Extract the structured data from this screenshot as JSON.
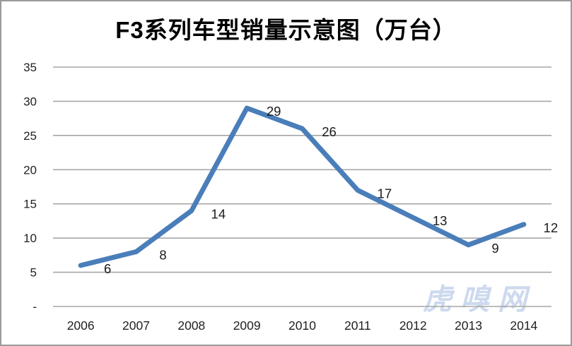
{
  "title": "F3系列车型销量示意图（万台）",
  "watermark": "虎嗅网",
  "colors": {
    "line": "#4a7eba",
    "grid": "#a6a6a6",
    "frame_border": "#9a9a9a",
    "text": "#212121",
    "watermark": "#cdd9ee",
    "background": "#ffffff"
  },
  "chart_data": {
    "type": "line",
    "title": "F3系列车型销量示意图（万台）",
    "categories": [
      "2006",
      "2007",
      "2008",
      "2009",
      "2010",
      "2011",
      "2012",
      "2013",
      "2014"
    ],
    "values": [
      6,
      8,
      14,
      29,
      26,
      17,
      13,
      9,
      12
    ],
    "series": [
      {
        "name": "F3系列车型销量",
        "values": [
          6,
          8,
          14,
          29,
          26,
          17,
          13,
          9,
          12
        ]
      }
    ],
    "xlabel": "",
    "ylabel": "",
    "ylim": [
      0,
      35
    ],
    "ytick_interval": 5,
    "ytick_labels": [
      "-",
      "5",
      "10",
      "15",
      "20",
      "25",
      "30",
      "35"
    ],
    "grid": true,
    "legend": "none",
    "data_labels": true,
    "unit": "万台"
  }
}
